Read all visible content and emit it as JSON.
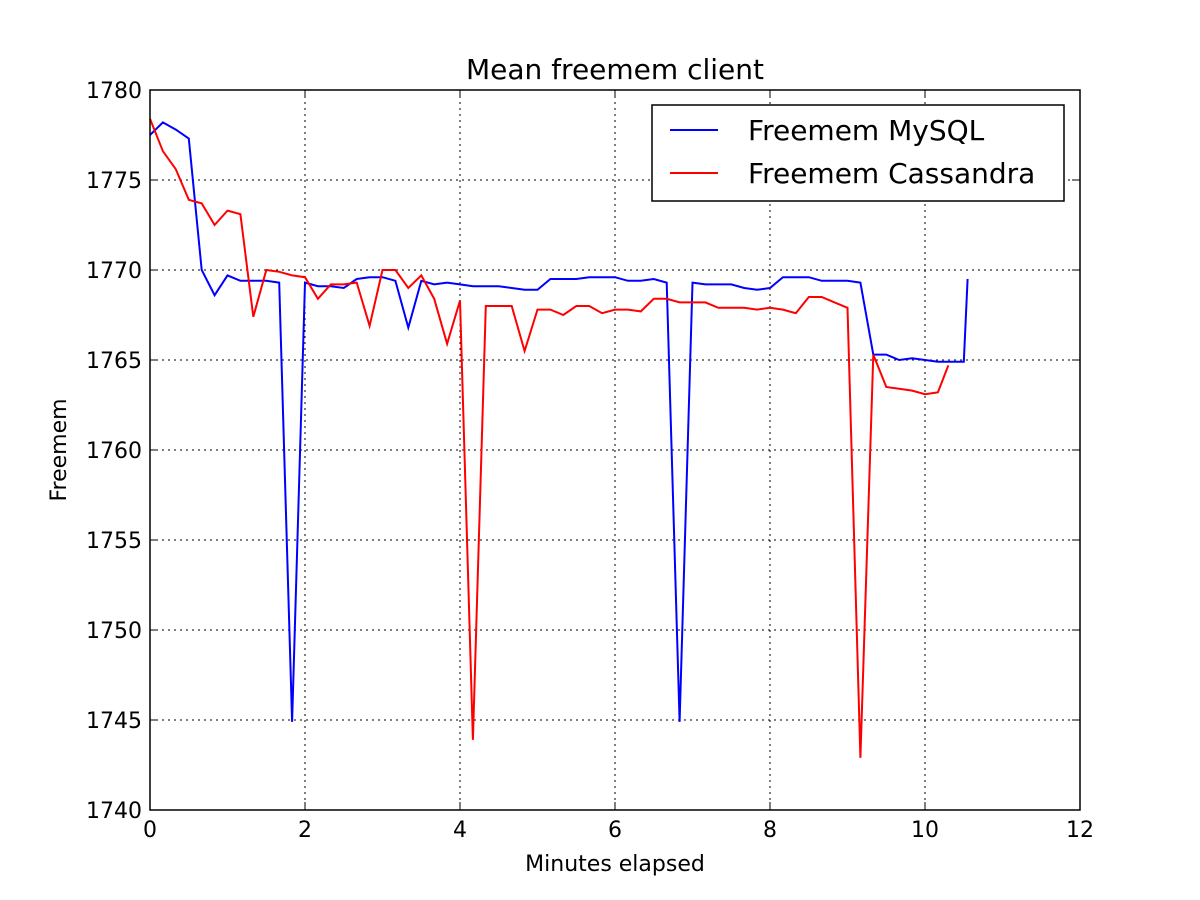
{
  "chart_data": {
    "type": "line",
    "title": "Mean freemem client",
    "xlabel": "Minutes elapsed",
    "ylabel": "Freemem",
    "xlim": [
      0,
      12
    ],
    "ylim": [
      1740,
      1780
    ],
    "xticks": [
      0,
      2,
      4,
      6,
      8,
      10,
      12
    ],
    "yticks": [
      1740,
      1745,
      1750,
      1755,
      1760,
      1765,
      1770,
      1775,
      1780
    ],
    "grid": true,
    "legend_position": "top-right",
    "series": [
      {
        "name": "Freemem MySQL",
        "color": "#0000ff",
        "x": [
          0,
          0.167,
          0.333,
          0.5,
          0.667,
          0.833,
          1.0,
          1.167,
          1.333,
          1.5,
          1.667,
          1.833,
          2.0,
          2.167,
          2.333,
          2.5,
          2.667,
          2.833,
          3.0,
          3.167,
          3.333,
          3.5,
          3.667,
          3.833,
          4.0,
          4.167,
          4.333,
          4.5,
          4.667,
          4.833,
          5.0,
          5.167,
          5.333,
          5.5,
          5.667,
          5.833,
          6.0,
          6.167,
          6.333,
          6.5,
          6.667,
          6.833,
          7.0,
          7.167,
          7.333,
          7.5,
          7.667,
          7.833,
          8.0,
          8.167,
          8.333,
          8.5,
          8.667,
          8.833,
          9.0,
          9.167,
          9.333,
          9.5,
          9.667,
          9.833,
          10.0,
          10.167,
          10.333,
          10.5,
          10.55
        ],
        "y": [
          1777.5,
          1778.2,
          1777.8,
          1777.3,
          1770.0,
          1768.6,
          1769.7,
          1769.4,
          1769.4,
          1769.4,
          1769.3,
          1744.9,
          1769.3,
          1769.1,
          1769.1,
          1769.0,
          1769.5,
          1769.6,
          1769.6,
          1769.4,
          1766.8,
          1769.4,
          1769.2,
          1769.3,
          1769.2,
          1769.1,
          1769.1,
          1769.1,
          1769.0,
          1768.9,
          1768.9,
          1769.5,
          1769.5,
          1769.5,
          1769.6,
          1769.6,
          1769.6,
          1769.4,
          1769.4,
          1769.5,
          1769.3,
          1744.9,
          1769.3,
          1769.2,
          1769.2,
          1769.2,
          1769.0,
          1768.9,
          1769.0,
          1769.6,
          1769.6,
          1769.6,
          1769.4,
          1769.4,
          1769.4,
          1769.3,
          1765.3,
          1765.3,
          1765.0,
          1765.1,
          1765.0,
          1764.9,
          1764.9,
          1764.9,
          1769.5
        ]
      },
      {
        "name": "Freemem Cassandra",
        "color": "#ff0000",
        "x": [
          0,
          0.167,
          0.333,
          0.5,
          0.667,
          0.833,
          1.0,
          1.167,
          1.333,
          1.5,
          1.667,
          1.833,
          2.0,
          2.167,
          2.333,
          2.5,
          2.667,
          2.833,
          3.0,
          3.167,
          3.333,
          3.5,
          3.667,
          3.833,
          4.0,
          4.167,
          4.333,
          4.5,
          4.667,
          4.833,
          5.0,
          5.167,
          5.333,
          5.5,
          5.667,
          5.833,
          6.0,
          6.167,
          6.333,
          6.5,
          6.667,
          6.833,
          7.0,
          7.167,
          7.333,
          7.5,
          7.667,
          7.833,
          8.0,
          8.167,
          8.333,
          8.5,
          8.667,
          8.833,
          9.0,
          9.167,
          9.333,
          9.5,
          9.667,
          9.833,
          10.0,
          10.167,
          10.3
        ],
        "y": [
          1778.4,
          1776.6,
          1775.6,
          1773.9,
          1773.7,
          1772.5,
          1773.3,
          1773.1,
          1767.4,
          1770.0,
          1769.9,
          1769.7,
          1769.6,
          1768.4,
          1769.2,
          1769.2,
          1769.3,
          1766.9,
          1770.0,
          1770.0,
          1769.0,
          1769.7,
          1768.4,
          1765.9,
          1768.3,
          1743.9,
          1768.0,
          1768.0,
          1768.0,
          1765.5,
          1767.8,
          1767.8,
          1767.5,
          1768.0,
          1768.0,
          1767.6,
          1767.8,
          1767.8,
          1767.7,
          1768.4,
          1768.4,
          1768.2,
          1768.2,
          1768.2,
          1767.9,
          1767.9,
          1767.9,
          1767.8,
          1767.9,
          1767.8,
          1767.6,
          1768.5,
          1768.5,
          1768.2,
          1767.9,
          1742.9,
          1765.3,
          1763.5,
          1763.4,
          1763.3,
          1763.1,
          1763.2,
          1764.7
        ]
      }
    ]
  }
}
